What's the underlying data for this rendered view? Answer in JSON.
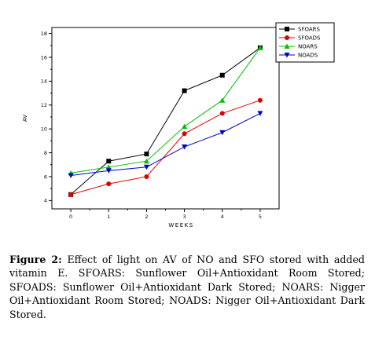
{
  "chart_data": {
    "type": "line",
    "xlabel": "WEEKS",
    "ylabel": "AV",
    "x": [
      0,
      1,
      2,
      3,
      4,
      5
    ],
    "xlim": [
      -0.5,
      5.5
    ],
    "ylim": [
      3.3,
      18.5
    ],
    "xticks": [
      "0",
      "1",
      "2",
      "3",
      "4",
      "5"
    ],
    "yticks": [
      "4",
      "6",
      "8",
      "10",
      "12",
      "14",
      "16",
      "18"
    ],
    "ytick_values": [
      4,
      6,
      8,
      10,
      12,
      14,
      16,
      18
    ],
    "grid": false,
    "legend_position": "top-right",
    "series": [
      {
        "name": "SFOARS",
        "color": "#000000",
        "marker": "square",
        "values": [
          4.5,
          7.3,
          7.9,
          13.2,
          14.5,
          16.8
        ]
      },
      {
        "name": "SFOADS",
        "color": "#e00000",
        "marker": "circle",
        "values": [
          4.5,
          5.4,
          6.0,
          9.6,
          11.3,
          12.4
        ]
      },
      {
        "name": "NOARS",
        "color": "#00c000",
        "marker": "triangle-up",
        "values": [
          6.3,
          6.8,
          7.3,
          10.2,
          12.4,
          16.8
        ]
      },
      {
        "name": "NOADS",
        "color": "#0000cc",
        "marker": "triangle-down",
        "values": [
          6.1,
          6.5,
          6.8,
          8.5,
          9.7,
          11.3
        ]
      }
    ]
  },
  "caption": {
    "label": "Figure 2:",
    "text": " Effect of light on AV of NO and SFO stored with added vitamin E. SFOARS: Sunflower Oil+Antioxidant Room Stored; SFOADS: Sunflower Oil+Antioxidant Dark Stored; NOARS: Nigger Oil+Antioxidant Room Stored; NOADS: Nigger Oil+Antioxidant Dark Stored."
  }
}
